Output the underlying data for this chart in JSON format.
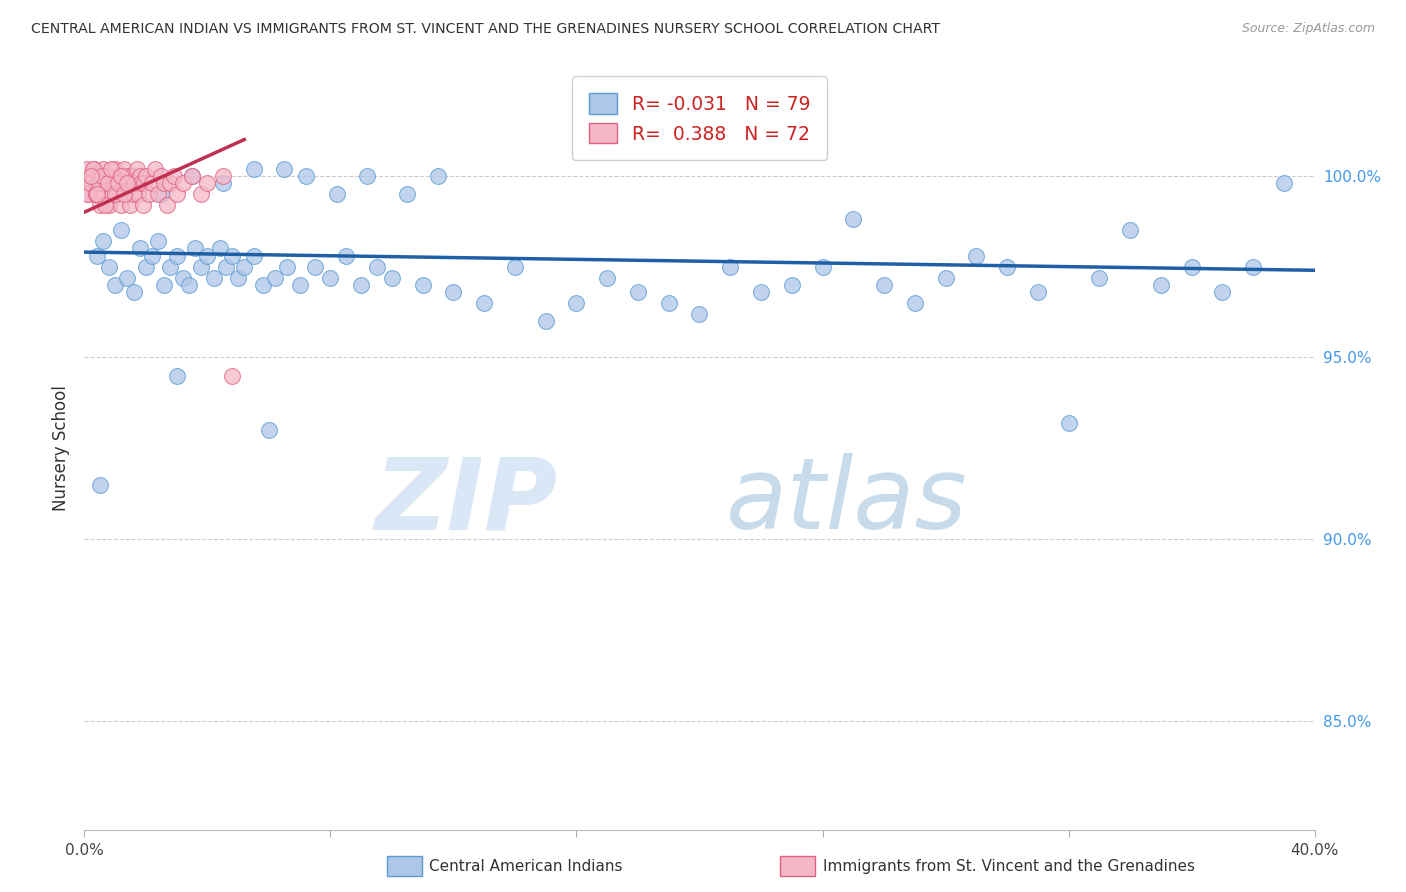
{
  "title": "CENTRAL AMERICAN INDIAN VS IMMIGRANTS FROM ST. VINCENT AND THE GRENADINES NURSERY SCHOOL CORRELATION CHART",
  "source": "Source: ZipAtlas.com",
  "ylabel": "Nursery School",
  "legend_blue_r": "-0.031",
  "legend_blue_n": "79",
  "legend_pink_r": "0.388",
  "legend_pink_n": "72",
  "legend_label_blue": "Central American Indians",
  "legend_label_pink": "Immigrants from St. Vincent and the Grenadines",
  "blue_color": "#aec6e8",
  "blue_edge_color": "#5b9bd5",
  "pink_color": "#f4b8c8",
  "pink_edge_color": "#e06080",
  "blue_trend_color": "#1f5fa6",
  "pink_trend_color": "#c03050",
  "watermark_zip_color": "#c5daf0",
  "watermark_atlas_color": "#a8c8e8",
  "blue_scatter_x": [
    0.4,
    0.6,
    0.8,
    1.0,
    1.2,
    1.4,
    1.6,
    1.8,
    2.0,
    2.2,
    2.4,
    2.6,
    2.8,
    3.0,
    3.2,
    3.4,
    3.6,
    3.8,
    4.0,
    4.2,
    4.4,
    4.6,
    4.8,
    5.0,
    5.2,
    5.5,
    5.8,
    6.2,
    6.6,
    7.0,
    7.5,
    8.0,
    8.5,
    9.0,
    9.5,
    10.0,
    11.0,
    12.0,
    13.0,
    14.0,
    15.0,
    16.0,
    17.0,
    18.0,
    19.0,
    20.0,
    21.0,
    22.0,
    23.0,
    24.0,
    25.0,
    26.0,
    27.0,
    28.0,
    29.0,
    30.0,
    31.0,
    32.0,
    33.0,
    34.0,
    35.0,
    36.0,
    37.0,
    38.0,
    39.0,
    1.5,
    2.5,
    3.5,
    4.5,
    5.5,
    6.5,
    7.2,
    8.2,
    9.2,
    10.5,
    11.5,
    0.5,
    3.0,
    6.0
  ],
  "blue_scatter_y": [
    97.8,
    98.2,
    97.5,
    97.0,
    98.5,
    97.2,
    96.8,
    98.0,
    97.5,
    97.8,
    98.2,
    97.0,
    97.5,
    97.8,
    97.2,
    97.0,
    98.0,
    97.5,
    97.8,
    97.2,
    98.0,
    97.5,
    97.8,
    97.2,
    97.5,
    97.8,
    97.0,
    97.2,
    97.5,
    97.0,
    97.5,
    97.2,
    97.8,
    97.0,
    97.5,
    97.2,
    97.0,
    96.8,
    96.5,
    97.5,
    96.0,
    96.5,
    97.2,
    96.8,
    96.5,
    96.2,
    97.5,
    96.8,
    97.0,
    97.5,
    98.8,
    97.0,
    96.5,
    97.2,
    97.8,
    97.5,
    96.8,
    93.2,
    97.2,
    98.5,
    97.0,
    97.5,
    96.8,
    97.5,
    99.8,
    99.8,
    99.5,
    100.0,
    99.8,
    100.2,
    100.2,
    100.0,
    99.5,
    100.0,
    99.5,
    100.0,
    91.5,
    94.5,
    93.0
  ],
  "pink_scatter_x": [
    0.05,
    0.1,
    0.15,
    0.2,
    0.25,
    0.3,
    0.35,
    0.4,
    0.45,
    0.5,
    0.55,
    0.6,
    0.65,
    0.7,
    0.75,
    0.8,
    0.85,
    0.9,
    0.95,
    1.0,
    1.05,
    1.1,
    1.15,
    1.2,
    1.25,
    1.3,
    1.35,
    1.4,
    1.45,
    1.5,
    1.55,
    1.6,
    1.65,
    1.7,
    1.75,
    1.8,
    1.85,
    1.9,
    1.95,
    2.0,
    2.1,
    2.2,
    2.3,
    2.4,
    2.5,
    2.6,
    2.7,
    2.8,
    2.9,
    3.0,
    3.2,
    3.5,
    3.8,
    4.0,
    4.5,
    0.08,
    0.18,
    0.28,
    0.38,
    0.48,
    0.58,
    0.68,
    0.78,
    0.88,
    0.98,
    1.08,
    1.18,
    1.28,
    1.38,
    0.22,
    0.42,
    4.8
  ],
  "pink_scatter_y": [
    99.8,
    100.2,
    99.5,
    100.0,
    99.8,
    100.2,
    99.5,
    99.8,
    100.0,
    99.2,
    99.8,
    100.2,
    99.5,
    100.0,
    99.8,
    99.2,
    100.0,
    99.5,
    99.8,
    100.2,
    99.5,
    99.8,
    100.0,
    99.2,
    99.8,
    100.2,
    99.5,
    100.0,
    99.8,
    99.2,
    100.0,
    99.5,
    99.8,
    100.2,
    99.5,
    100.0,
    99.8,
    99.2,
    99.8,
    100.0,
    99.5,
    99.8,
    100.2,
    99.5,
    100.0,
    99.8,
    99.2,
    99.8,
    100.0,
    99.5,
    99.8,
    100.0,
    99.5,
    99.8,
    100.0,
    99.5,
    99.8,
    100.2,
    99.5,
    99.8,
    100.0,
    99.2,
    99.8,
    100.2,
    99.5,
    99.8,
    100.0,
    99.5,
    99.8,
    100.0,
    99.5,
    94.5
  ],
  "xlim": [
    0.0,
    40.0
  ],
  "ylim_min": 82.0,
  "ylim_max": 103.0,
  "ytick_vals": [
    85.0,
    90.0,
    95.0,
    100.0
  ],
  "ytick_labels": [
    "85.0%",
    "90.0%",
    "95.0%",
    "100.0%"
  ],
  "blue_trend_x": [
    0.0,
    40.0
  ],
  "blue_trend_y": [
    97.9,
    97.4
  ],
  "pink_trend_x": [
    0.0,
    5.2
  ],
  "pink_trend_y": [
    99.0,
    101.0
  ]
}
